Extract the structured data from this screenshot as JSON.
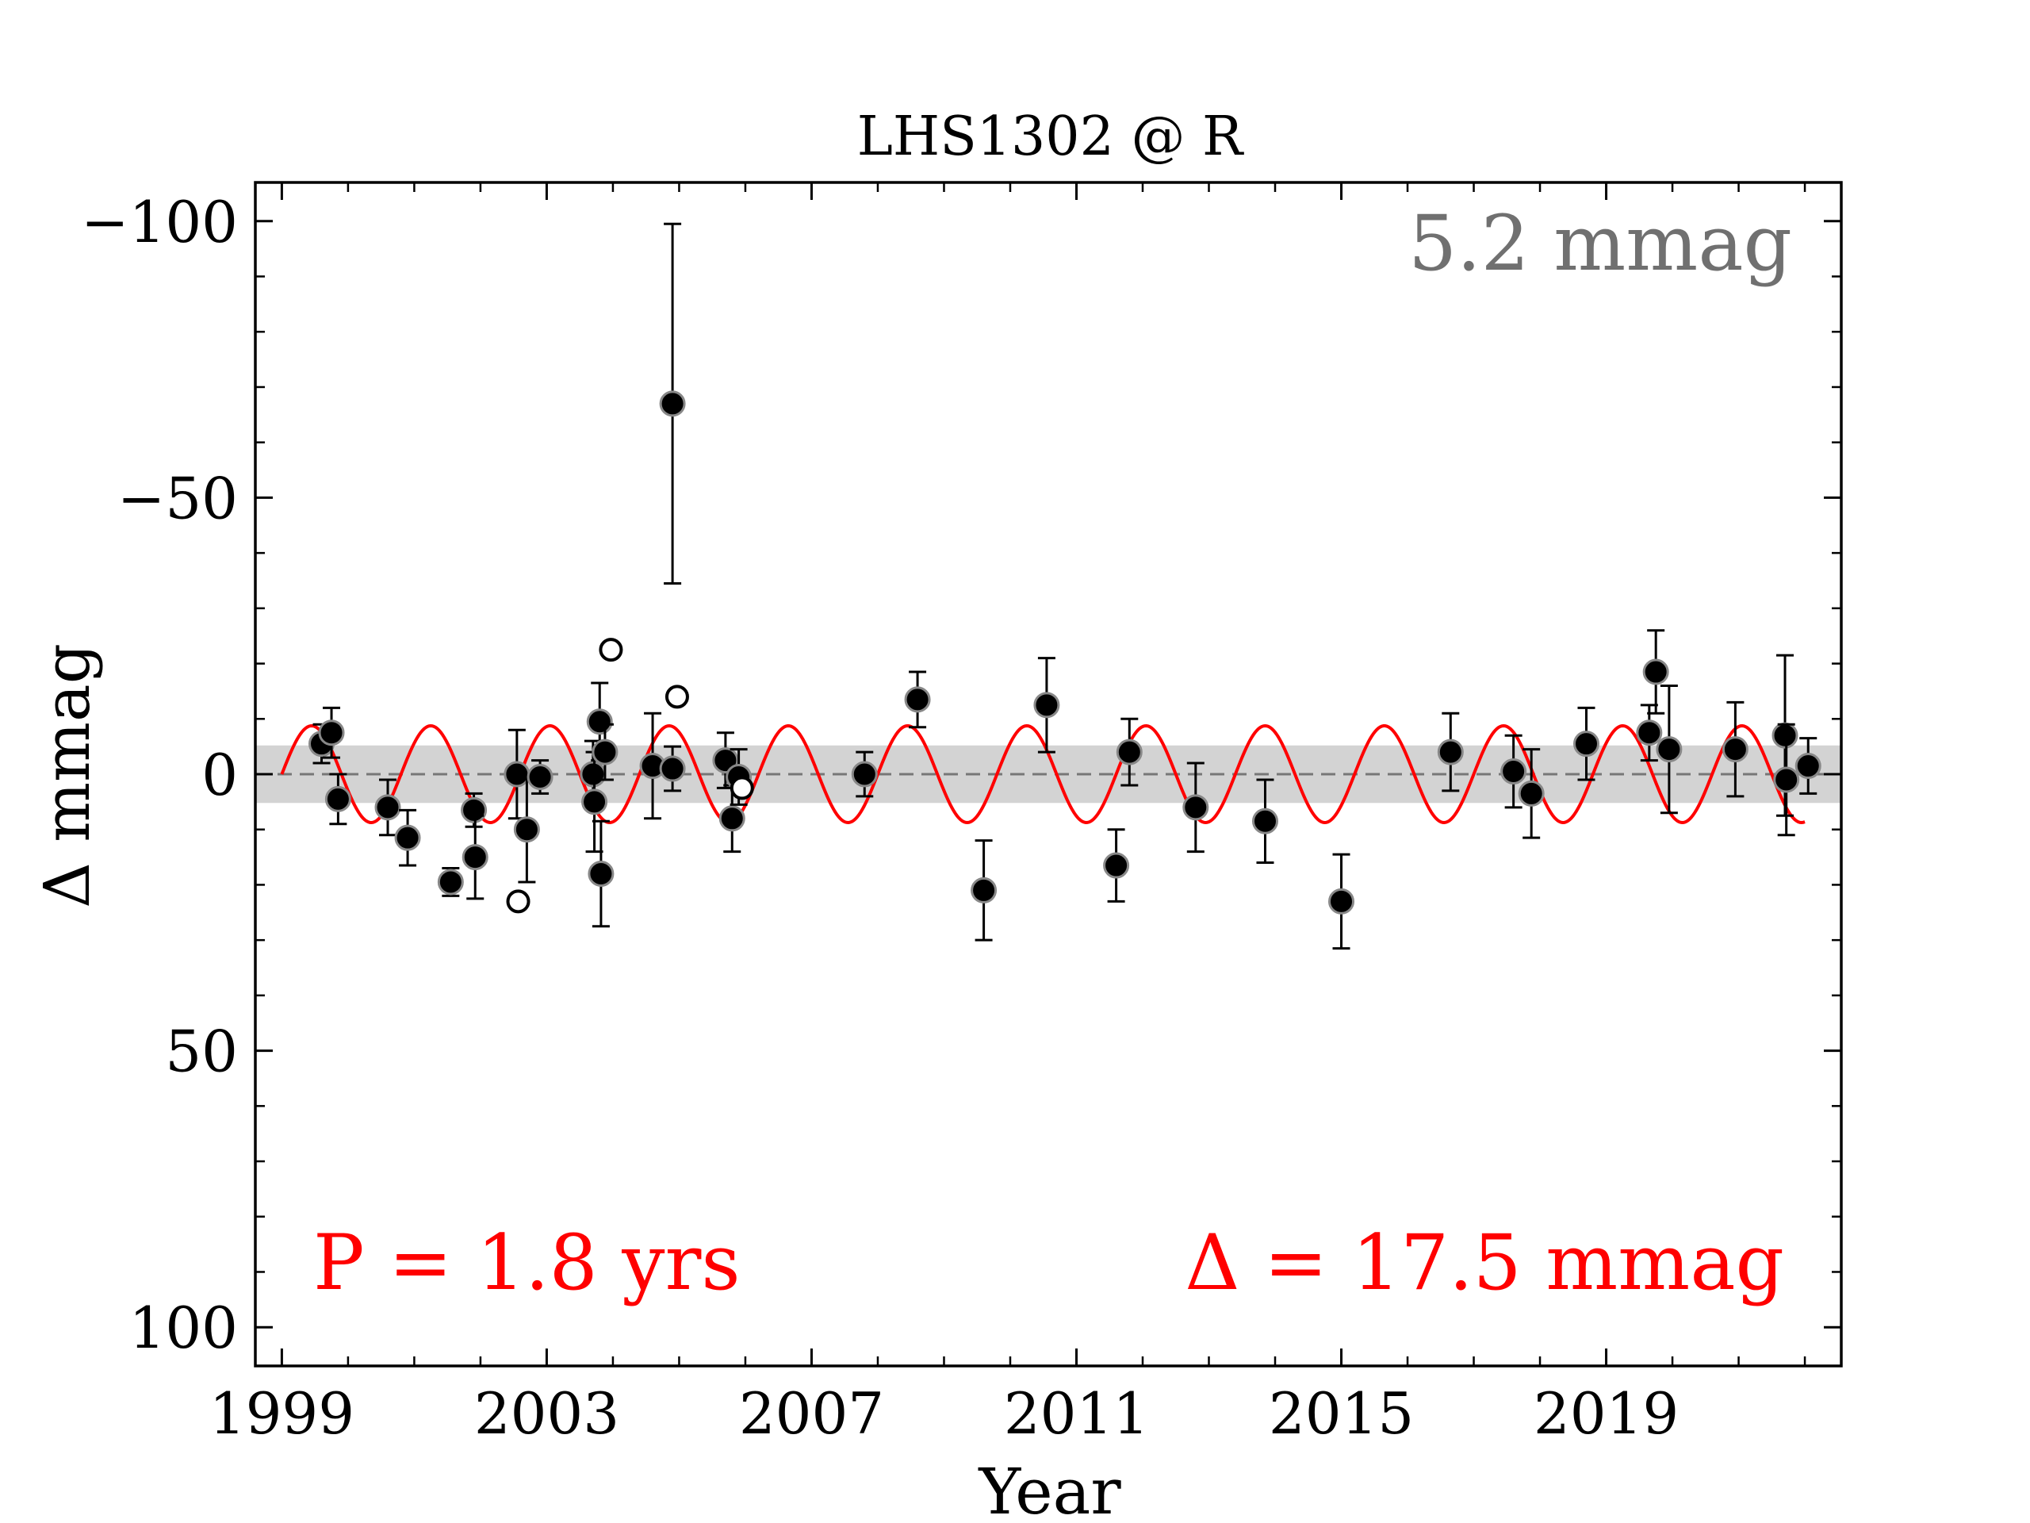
{
  "chart_data": {
    "type": "scatter",
    "title": "LHS1302 @ R",
    "xlabel": "Year",
    "ylabel": "Δ  mmag",
    "xlim": [
      1998.6,
      2022.55
    ],
    "ylim": [
      107,
      -107
    ],
    "y_inverted": true,
    "x_ticks": [
      1999,
      2003,
      2007,
      2011,
      2015,
      2019
    ],
    "y_ticks": [
      -100,
      -50,
      0,
      50,
      100
    ],
    "y_tick_labels": [
      "−100",
      "−50",
      "0",
      "50",
      "100"
    ],
    "stddev_band": [
      -5.2,
      5.2
    ],
    "annotations": {
      "scatter_label": "5.2 mmag",
      "period_label": "P = 1.8 yrs",
      "amplitude_label": "Δ = 17.5 mmag"
    },
    "colors": {
      "fit": "#ff0000",
      "band": "#d3d3d3",
      "scatter_label": "#707070",
      "points": "#000000"
    },
    "fit": {
      "period_years": 1.8,
      "amplitude_mmag": 8.75,
      "offset_mmag": 0,
      "x_start": 1999.0,
      "x_end": 2022.0,
      "reference_year": 1999.0
    },
    "series": [
      {
        "marker": "filled",
        "points": [
          {
            "x": 1999.6,
            "y": -5.5,
            "err": 3.5
          },
          {
            "x": 1999.75,
            "y": -7.5,
            "err": 4.5
          },
          {
            "x": 1999.85,
            "y": 4.5,
            "err": 4.5
          },
          {
            "x": 2000.6,
            "y": 6,
            "err": 5
          },
          {
            "x": 2000.9,
            "y": 11.5,
            "err": 5
          },
          {
            "x": 2001.55,
            "y": 19.5,
            "err": 2.5
          },
          {
            "x": 2001.9,
            "y": 6.5,
            "err": 3
          },
          {
            "x": 2001.92,
            "y": 15,
            "err": 7.5
          },
          {
            "x": 2002.55,
            "y": 0,
            "err": 8
          },
          {
            "x": 2002.7,
            "y": 10,
            "err": 9.5
          },
          {
            "x": 2002.9,
            "y": 0.5,
            "err": 3
          },
          {
            "x": 2003.7,
            "y": 0,
            "err": 6
          },
          {
            "x": 2003.72,
            "y": 5,
            "err": 9
          },
          {
            "x": 2003.8,
            "y": -9.5,
            "err": 7
          },
          {
            "x": 2003.82,
            "y": 18,
            "err": 9.5
          },
          {
            "x": 2003.88,
            "y": -4,
            "err": 5
          },
          {
            "x": 2004.6,
            "y": -1.5,
            "err": 9.5
          },
          {
            "x": 2004.9,
            "y": -1,
            "err": 4
          },
          {
            "x": 2004.9,
            "y": -67,
            "err": 32.5
          },
          {
            "x": 2005.7,
            "y": -2.5,
            "err": 5
          },
          {
            "x": 2005.8,
            "y": 8,
            "err": 6
          },
          {
            "x": 2005.9,
            "y": 0.5,
            "err": 5
          },
          {
            "x": 2007.8,
            "y": 0,
            "err": 4
          },
          {
            "x": 2008.6,
            "y": -13.5,
            "err": 5
          },
          {
            "x": 2009.6,
            "y": 21,
            "err": 9
          },
          {
            "x": 2010.55,
            "y": -12.5,
            "err": 8.5
          },
          {
            "x": 2011.6,
            "y": 16.5,
            "err": 6.5
          },
          {
            "x": 2011.8,
            "y": -4,
            "err": 6
          },
          {
            "x": 2012.8,
            "y": 6,
            "err": 8
          },
          {
            "x": 2013.85,
            "y": 8.5,
            "err": 7.5
          },
          {
            "x": 2015.0,
            "y": 23,
            "err": 8.5
          },
          {
            "x": 2016.65,
            "y": -4,
            "err": 7
          },
          {
            "x": 2017.6,
            "y": -0.5,
            "err": 6.5
          },
          {
            "x": 2017.87,
            "y": 3.5,
            "err": 8
          },
          {
            "x": 2018.7,
            "y": -5.5,
            "err": 6.5
          },
          {
            "x": 2019.65,
            "y": -7.5,
            "err": 5
          },
          {
            "x": 2019.75,
            "y": -18.5,
            "err": 7.5
          },
          {
            "x": 2019.95,
            "y": -4.5,
            "err": 11.5
          },
          {
            "x": 2020.95,
            "y": -4.5,
            "err": 8.5
          },
          {
            "x": 2021.7,
            "y": -7,
            "err": 14.5
          },
          {
            "x": 2021.72,
            "y": 1,
            "err": 10
          },
          {
            "x": 2022.05,
            "y": -1.5,
            "err": 5
          }
        ]
      },
      {
        "marker": "open",
        "points": [
          {
            "x": 2002.57,
            "y": 23
          },
          {
            "x": 2003.97,
            "y": -22.5
          },
          {
            "x": 2004.97,
            "y": -14
          },
          {
            "x": 2005.95,
            "y": 2.5
          }
        ]
      }
    ]
  }
}
